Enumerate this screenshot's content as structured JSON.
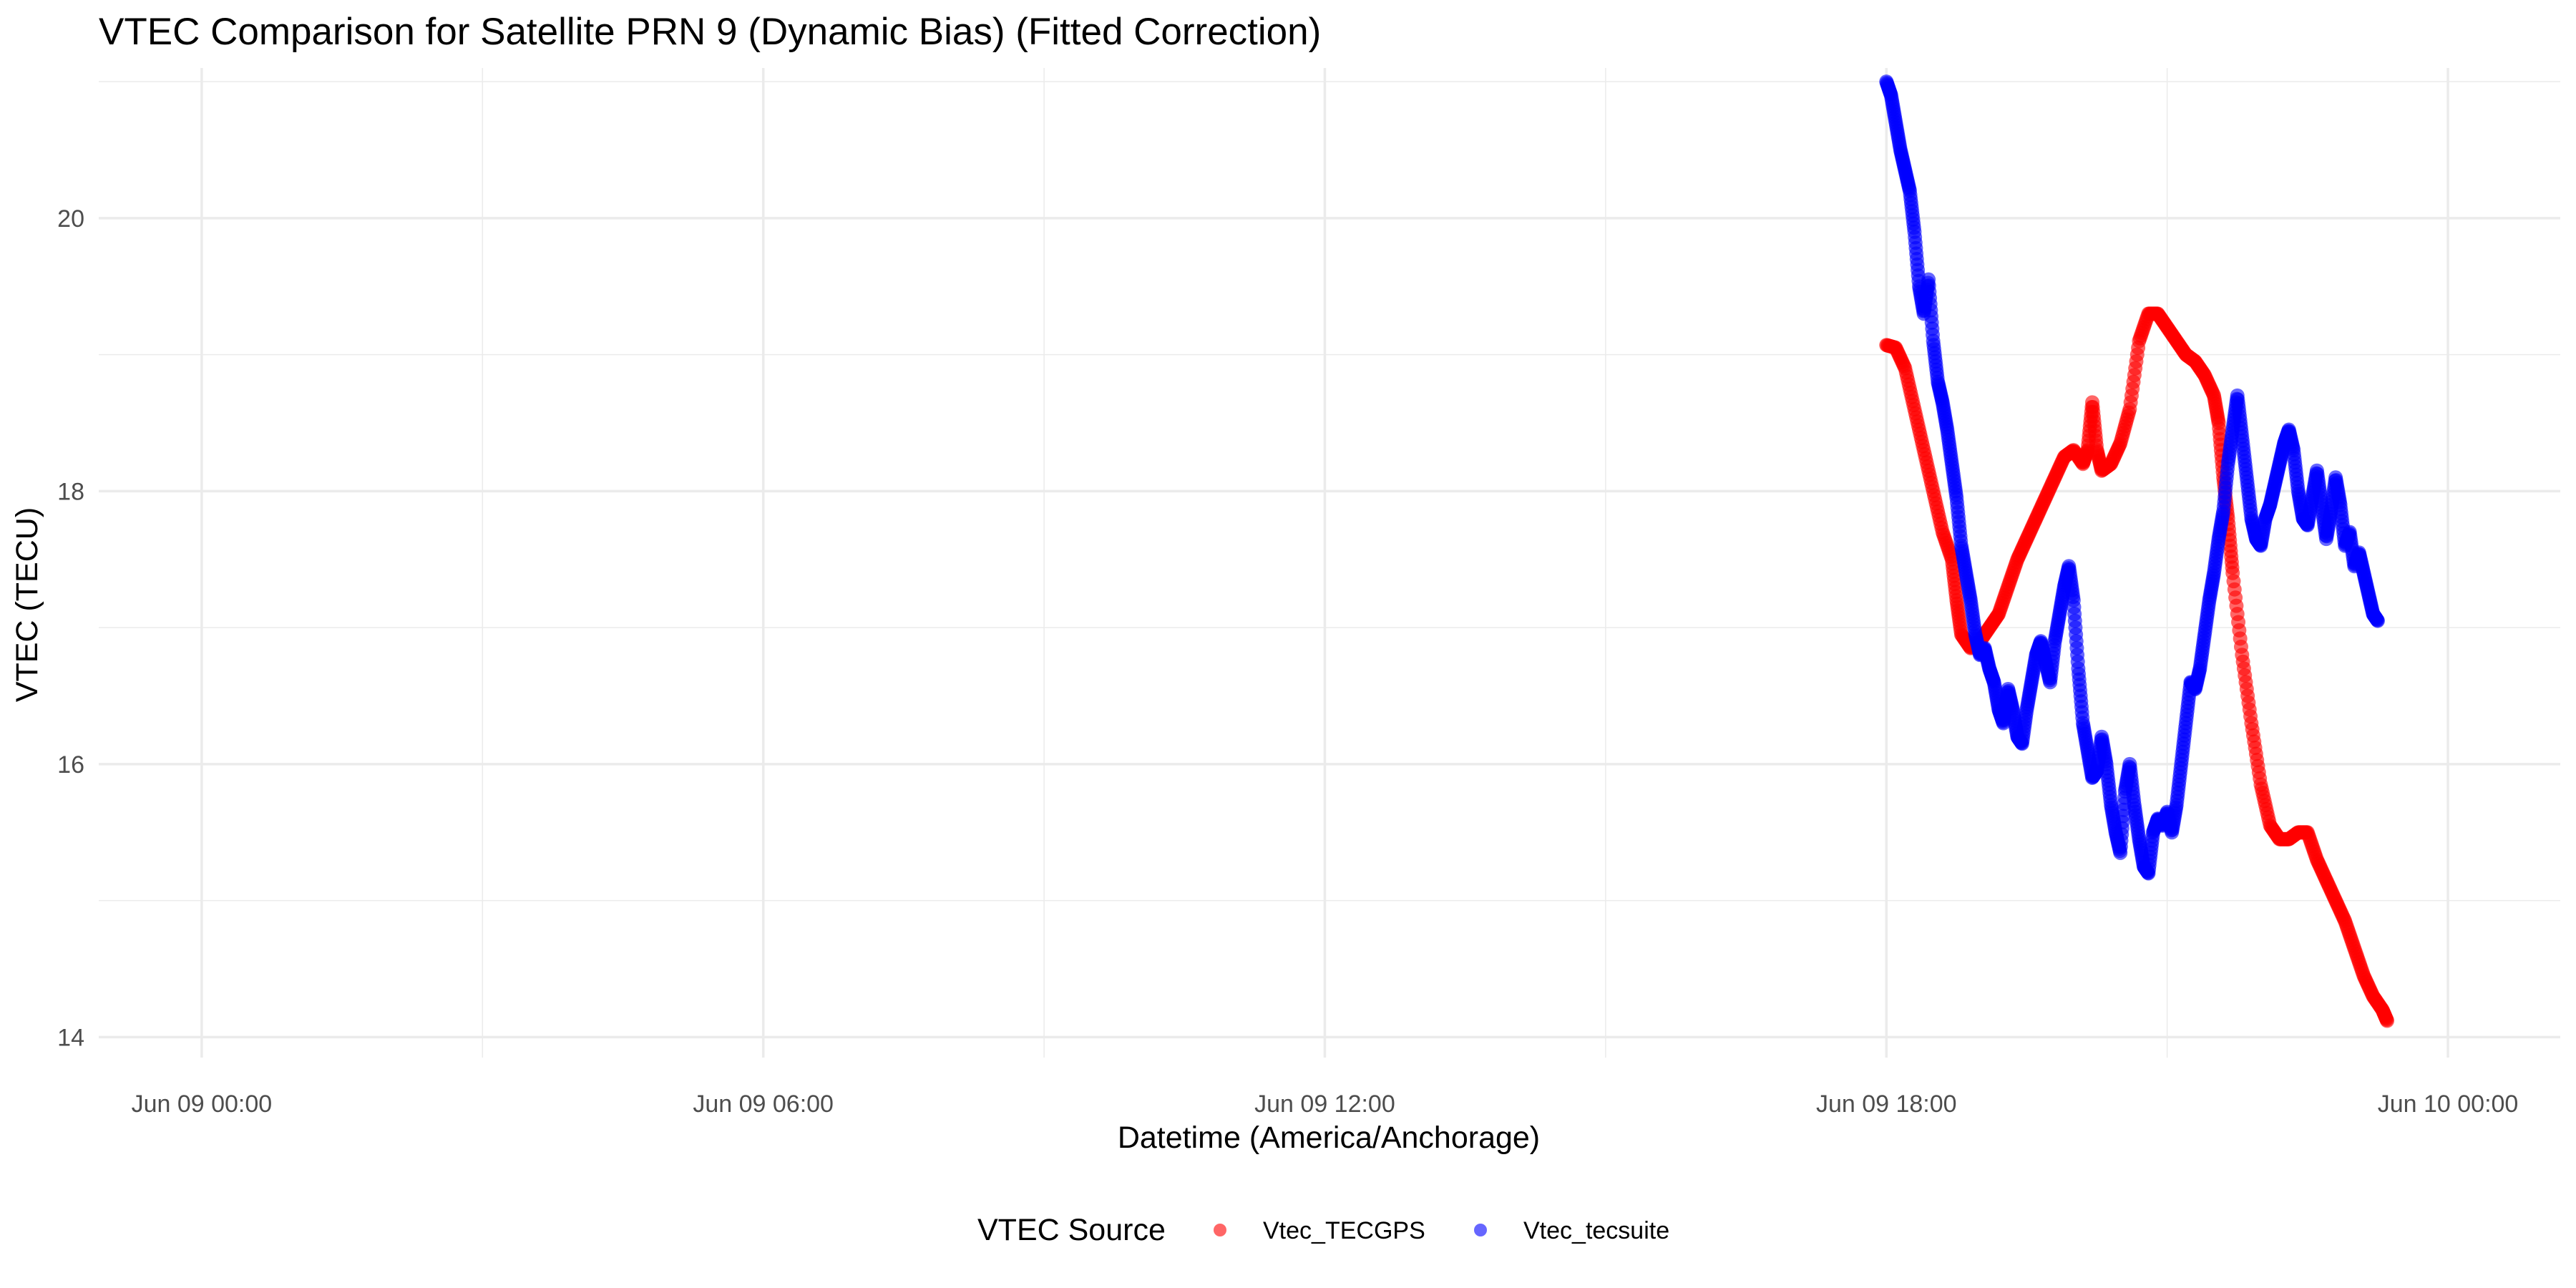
{
  "chart_data": {
    "type": "scatter",
    "title": "VTEC Comparison for Satellite PRN 9 (Dynamic Bias)   (Fitted Correction)",
    "xlabel": "Datetime (America/Anchorage)",
    "ylabel": "VTEC (TECU)",
    "x_ticks": [
      "Jun 09 00:00",
      "Jun 09 06:00",
      "Jun 09 12:00",
      "Jun 09 18:00",
      "Jun 10 00:00"
    ],
    "x_tick_hours": [
      0,
      6,
      12,
      18,
      24
    ],
    "xlim_hours": [
      -1.1,
      25.2
    ],
    "y_ticks": [
      14,
      16,
      18,
      20
    ],
    "ylim": [
      13.85,
      21.1
    ],
    "grid": true,
    "legend": {
      "title": "VTEC Source",
      "position": "bottom"
    },
    "series": [
      {
        "name": "Vtec_TECGPS",
        "color": "#ff0000",
        "points": [
          [
            18.0,
            19.07
          ],
          [
            18.1,
            19.05
          ],
          [
            18.2,
            18.9
          ],
          [
            18.3,
            18.6
          ],
          [
            18.4,
            18.3
          ],
          [
            18.5,
            18.0
          ],
          [
            18.6,
            17.7
          ],
          [
            18.7,
            17.5
          ],
          [
            18.75,
            17.2
          ],
          [
            18.8,
            16.95
          ],
          [
            18.9,
            16.85
          ],
          [
            19.0,
            16.9
          ],
          [
            19.1,
            17.0
          ],
          [
            19.2,
            17.1
          ],
          [
            19.3,
            17.3
          ],
          [
            19.4,
            17.5
          ],
          [
            19.5,
            17.65
          ],
          [
            19.6,
            17.8
          ],
          [
            19.7,
            17.95
          ],
          [
            19.8,
            18.1
          ],
          [
            19.9,
            18.25
          ],
          [
            20.0,
            18.3
          ],
          [
            20.1,
            18.2
          ],
          [
            20.15,
            18.3
          ],
          [
            20.2,
            18.65
          ],
          [
            20.25,
            18.3
          ],
          [
            20.3,
            18.15
          ],
          [
            20.4,
            18.2
          ],
          [
            20.5,
            18.35
          ],
          [
            20.6,
            18.6
          ],
          [
            20.7,
            19.1
          ],
          [
            20.8,
            19.3
          ],
          [
            20.9,
            19.3
          ],
          [
            21.0,
            19.2
          ],
          [
            21.1,
            19.1
          ],
          [
            21.2,
            19.0
          ],
          [
            21.3,
            18.95
          ],
          [
            21.4,
            18.85
          ],
          [
            21.5,
            18.7
          ],
          [
            21.55,
            18.5
          ],
          [
            21.6,
            18.1
          ],
          [
            21.65,
            17.8
          ],
          [
            21.7,
            17.4
          ],
          [
            21.8,
            16.8
          ],
          [
            21.9,
            16.3
          ],
          [
            22.0,
            15.85
          ],
          [
            22.1,
            15.55
          ],
          [
            22.2,
            15.45
          ],
          [
            22.3,
            15.45
          ],
          [
            22.4,
            15.5
          ],
          [
            22.5,
            15.5
          ],
          [
            22.6,
            15.3
          ],
          [
            22.7,
            15.15
          ],
          [
            22.8,
            15.0
          ],
          [
            22.9,
            14.85
          ],
          [
            23.0,
            14.65
          ],
          [
            23.1,
            14.45
          ],
          [
            23.2,
            14.3
          ],
          [
            23.3,
            14.2
          ],
          [
            23.35,
            14.12
          ]
        ]
      },
      {
        "name": "Vtec_tecsuite",
        "color": "#0000ff",
        "points": [
          [
            18.0,
            21.0
          ],
          [
            18.05,
            20.9
          ],
          [
            18.1,
            20.7
          ],
          [
            18.15,
            20.5
          ],
          [
            18.2,
            20.35
          ],
          [
            18.25,
            20.2
          ],
          [
            18.3,
            19.9
          ],
          [
            18.35,
            19.5
          ],
          [
            18.4,
            19.3
          ],
          [
            18.45,
            19.55
          ],
          [
            18.5,
            19.1
          ],
          [
            18.55,
            18.8
          ],
          [
            18.6,
            18.65
          ],
          [
            18.65,
            18.45
          ],
          [
            18.7,
            18.2
          ],
          [
            18.75,
            17.95
          ],
          [
            18.8,
            17.6
          ],
          [
            18.85,
            17.4
          ],
          [
            18.9,
            17.2
          ],
          [
            18.95,
            16.95
          ],
          [
            19.0,
            16.8
          ],
          [
            19.05,
            16.85
          ],
          [
            19.1,
            16.7
          ],
          [
            19.15,
            16.6
          ],
          [
            19.2,
            16.4
          ],
          [
            19.25,
            16.3
          ],
          [
            19.3,
            16.55
          ],
          [
            19.35,
            16.4
          ],
          [
            19.4,
            16.2
          ],
          [
            19.45,
            16.15
          ],
          [
            19.5,
            16.4
          ],
          [
            19.55,
            16.6
          ],
          [
            19.6,
            16.8
          ],
          [
            19.65,
            16.9
          ],
          [
            19.7,
            16.75
          ],
          [
            19.75,
            16.6
          ],
          [
            19.8,
            16.9
          ],
          [
            19.85,
            17.1
          ],
          [
            19.9,
            17.3
          ],
          [
            19.95,
            17.45
          ],
          [
            20.0,
            17.2
          ],
          [
            20.05,
            16.7
          ],
          [
            20.1,
            16.3
          ],
          [
            20.15,
            16.1
          ],
          [
            20.2,
            15.9
          ],
          [
            20.25,
            15.95
          ],
          [
            20.3,
            16.2
          ],
          [
            20.35,
            16.0
          ],
          [
            20.4,
            15.7
          ],
          [
            20.45,
            15.5
          ],
          [
            20.5,
            15.35
          ],
          [
            20.55,
            15.8
          ],
          [
            20.6,
            16.0
          ],
          [
            20.65,
            15.7
          ],
          [
            20.7,
            15.45
          ],
          [
            20.75,
            15.25
          ],
          [
            20.8,
            15.2
          ],
          [
            20.85,
            15.5
          ],
          [
            20.9,
            15.6
          ],
          [
            20.95,
            15.55
          ],
          [
            21.0,
            15.65
          ],
          [
            21.05,
            15.5
          ],
          [
            21.1,
            15.7
          ],
          [
            21.15,
            16.0
          ],
          [
            21.2,
            16.3
          ],
          [
            21.25,
            16.6
          ],
          [
            21.3,
            16.55
          ],
          [
            21.35,
            16.7
          ],
          [
            21.4,
            16.95
          ],
          [
            21.45,
            17.2
          ],
          [
            21.5,
            17.4
          ],
          [
            21.55,
            17.65
          ],
          [
            21.6,
            17.85
          ],
          [
            21.65,
            18.2
          ],
          [
            21.7,
            18.45
          ],
          [
            21.75,
            18.7
          ],
          [
            21.8,
            18.4
          ],
          [
            21.85,
            18.1
          ],
          [
            21.9,
            17.8
          ],
          [
            21.95,
            17.65
          ],
          [
            22.0,
            17.6
          ],
          [
            22.05,
            17.8
          ],
          [
            22.1,
            17.9
          ],
          [
            22.15,
            18.05
          ],
          [
            22.2,
            18.2
          ],
          [
            22.25,
            18.35
          ],
          [
            22.3,
            18.45
          ],
          [
            22.35,
            18.3
          ],
          [
            22.4,
            18.0
          ],
          [
            22.45,
            17.8
          ],
          [
            22.5,
            17.75
          ],
          [
            22.55,
            17.95
          ],
          [
            22.6,
            18.15
          ],
          [
            22.65,
            17.9
          ],
          [
            22.7,
            17.65
          ],
          [
            22.75,
            17.85
          ],
          [
            22.8,
            18.1
          ],
          [
            22.85,
            17.9
          ],
          [
            22.9,
            17.6
          ],
          [
            22.95,
            17.7
          ],
          [
            23.0,
            17.45
          ],
          [
            23.05,
            17.55
          ],
          [
            23.1,
            17.4
          ],
          [
            23.15,
            17.25
          ],
          [
            23.2,
            17.1
          ],
          [
            23.25,
            17.05
          ]
        ]
      }
    ]
  }
}
